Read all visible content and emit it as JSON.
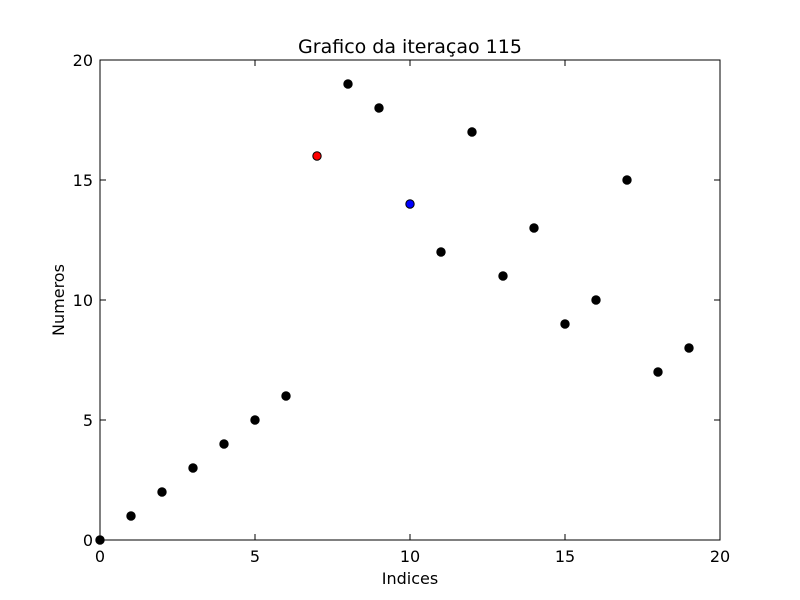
{
  "chart_data": {
    "type": "scatter",
    "title": "Grafico da iteraçao 115",
    "xlabel": "Indices",
    "ylabel": "Numeros",
    "xlim": [
      0,
      20
    ],
    "ylim": [
      0,
      20
    ],
    "xticks": [
      0,
      5,
      10,
      15,
      20
    ],
    "yticks": [
      0,
      5,
      10,
      15,
      20
    ],
    "grid": false,
    "colors": {
      "default_point": "#000000",
      "highlight_red": "#ff0000",
      "highlight_blue": "#0000ff"
    },
    "points": [
      {
        "x": 0,
        "y": 0,
        "color": "#000000"
      },
      {
        "x": 1,
        "y": 1,
        "color": "#000000"
      },
      {
        "x": 2,
        "y": 2,
        "color": "#000000"
      },
      {
        "x": 3,
        "y": 3,
        "color": "#000000"
      },
      {
        "x": 4,
        "y": 4,
        "color": "#000000"
      },
      {
        "x": 5,
        "y": 5,
        "color": "#000000"
      },
      {
        "x": 6,
        "y": 6,
        "color": "#000000"
      },
      {
        "x": 7,
        "y": 16,
        "color": "#ff0000"
      },
      {
        "x": 8,
        "y": 19,
        "color": "#000000"
      },
      {
        "x": 9,
        "y": 18,
        "color": "#000000"
      },
      {
        "x": 10,
        "y": 14,
        "color": "#0000ff"
      },
      {
        "x": 11,
        "y": 12,
        "color": "#000000"
      },
      {
        "x": 12,
        "y": 17,
        "color": "#000000"
      },
      {
        "x": 13,
        "y": 11,
        "color": "#000000"
      },
      {
        "x": 14,
        "y": 13,
        "color": "#000000"
      },
      {
        "x": 15,
        "y": 9,
        "color": "#000000"
      },
      {
        "x": 16,
        "y": 10,
        "color": "#000000"
      },
      {
        "x": 17,
        "y": 15,
        "color": "#000000"
      },
      {
        "x": 18,
        "y": 7,
        "color": "#000000"
      },
      {
        "x": 19,
        "y": 8,
        "color": "#000000"
      }
    ]
  }
}
